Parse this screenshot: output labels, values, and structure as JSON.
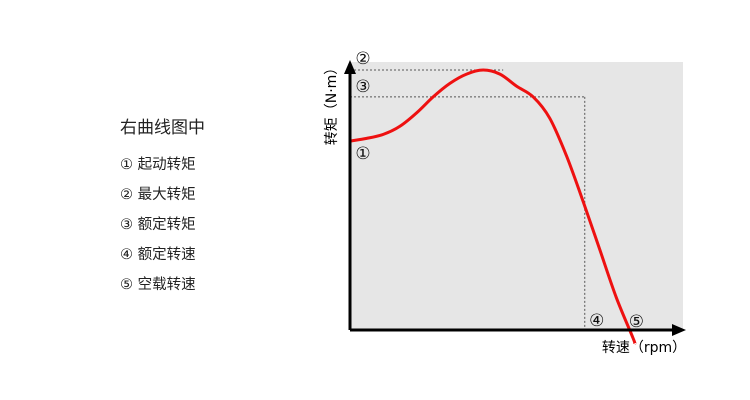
{
  "legend": {
    "title": "右曲线图中",
    "items": [
      "① 起动转矩",
      "② 最大转矩",
      "③ 额定转矩",
      "④ 额定转速",
      "⑤ 空载转速"
    ]
  },
  "chart_data": {
    "type": "line",
    "xlabel": "转速（rpm）",
    "ylabel": "转矩（N·m）",
    "xlim": [
      0,
      1
    ],
    "ylim": [
      0,
      1
    ],
    "grid": false,
    "colors": {
      "plot_bg": "#e6e6e6",
      "curve": "#ee1111",
      "axis": "#000000",
      "guide": "#555555"
    },
    "series": [
      {
        "values_x": [
          0,
          0.05,
          0.1,
          0.15,
          0.2,
          0.25,
          0.3,
          0.35,
          0.4,
          0.45,
          0.5,
          0.55,
          0.6,
          0.65,
          0.7,
          0.75,
          0.8,
          0.85,
          0.855
        ],
        "values_y": [
          0.705,
          0.715,
          0.73,
          0.76,
          0.81,
          0.87,
          0.92,
          0.955,
          0.97,
          0.955,
          0.91,
          0.87,
          0.79,
          0.65,
          0.48,
          0.3,
          0.12,
          -0.03,
          -0.05
        ]
      }
    ],
    "annotations": [
      {
        "label": "①",
        "x": 0.0,
        "y": 0.705,
        "kind": "starting-torque"
      },
      {
        "label": "②",
        "x": 0.46,
        "y": 0.97,
        "kind": "max-torque"
      },
      {
        "label": "③",
        "x": 0.705,
        "y": 0.87,
        "kind": "rated-torque"
      },
      {
        "label": "④",
        "x": 0.705,
        "y": 0.0,
        "kind": "rated-speed"
      },
      {
        "label": "⑤",
        "x": 0.83,
        "y": 0.0,
        "kind": "no-load-speed"
      }
    ]
  }
}
